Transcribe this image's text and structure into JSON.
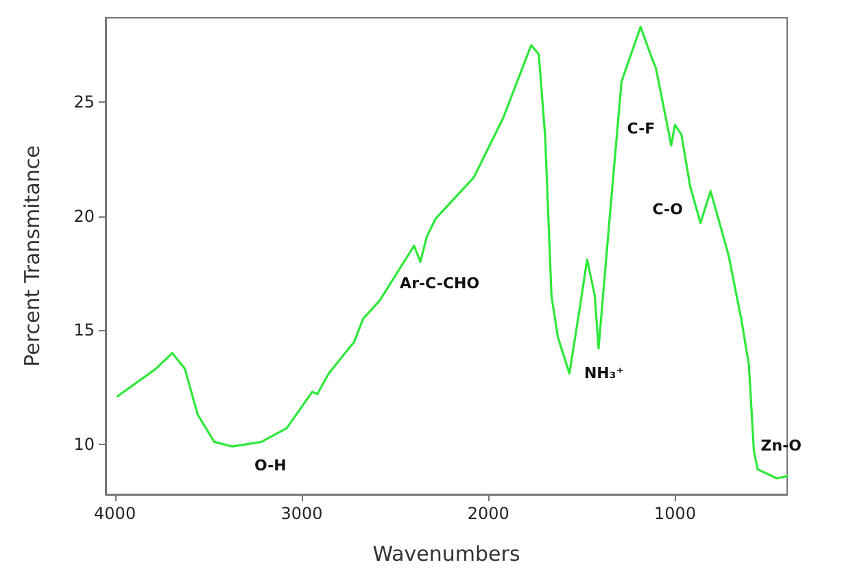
{
  "chart_data": {
    "type": "line",
    "xlabel": "Wavenumbers",
    "ylabel": "Percent Transmitance",
    "xlim": [
      4050,
      400
    ],
    "xticks": [
      4000,
      3000,
      2000,
      1000
    ],
    "ylim": [
      7.8,
      28.7
    ],
    "yticks": [
      10,
      15,
      20,
      25
    ],
    "marker": "none",
    "line_style": "solid",
    "x": [
      3986,
      3782,
      3693,
      3625,
      3557,
      3468,
      3373,
      3216,
      3080,
      2943,
      2916,
      2855,
      2718,
      2671,
      2582,
      2398,
      2364,
      2330,
      2282,
      2078,
      1921,
      1771,
      1730,
      1696,
      1662,
      1628,
      1566,
      1512,
      1471,
      1430,
      1410,
      1355,
      1287,
      1185,
      1123,
      1103,
      1035,
      1021,
      1001,
      967,
      919,
      864,
      810,
      714,
      646,
      605,
      578,
      558,
      455,
      400
    ],
    "series": [
      {
        "color": "#2ee83a",
        "values": [
          12.1,
          13.3,
          14.0,
          13.3,
          11.3,
          10.1,
          9.9,
          10.1,
          10.7,
          12.3,
          12.2,
          13.1,
          14.5,
          15.5,
          16.3,
          18.7,
          18.0,
          19.1,
          19.9,
          21.7,
          24.3,
          27.5,
          27.1,
          23.5,
          16.5,
          14.7,
          13.1,
          15.9,
          18.1,
          16.5,
          14.2,
          19.5,
          25.9,
          28.3,
          26.9,
          26.5,
          23.7,
          23.1,
          24.0,
          23.6,
          21.3,
          19.7,
          21.1,
          18.3,
          15.5,
          13.5,
          9.7,
          8.9,
          8.5,
          8.6
        ]
      }
    ],
    "annotations": [
      {
        "text": "O-H",
        "x": 3373,
        "y": 9.9
      },
      {
        "text": "Ar-C-CHO",
        "x": 2364,
        "y": 18.0
      },
      {
        "text": "NH₃⁺",
        "x": 1410,
        "y": 14.2
      },
      {
        "text": "C-F",
        "x": 1021,
        "y": 23.1
      },
      {
        "text": "C-O",
        "x": 864,
        "y": 19.7
      },
      {
        "text": "Zn-O",
        "x": 578,
        "y": 9.7
      }
    ]
  }
}
